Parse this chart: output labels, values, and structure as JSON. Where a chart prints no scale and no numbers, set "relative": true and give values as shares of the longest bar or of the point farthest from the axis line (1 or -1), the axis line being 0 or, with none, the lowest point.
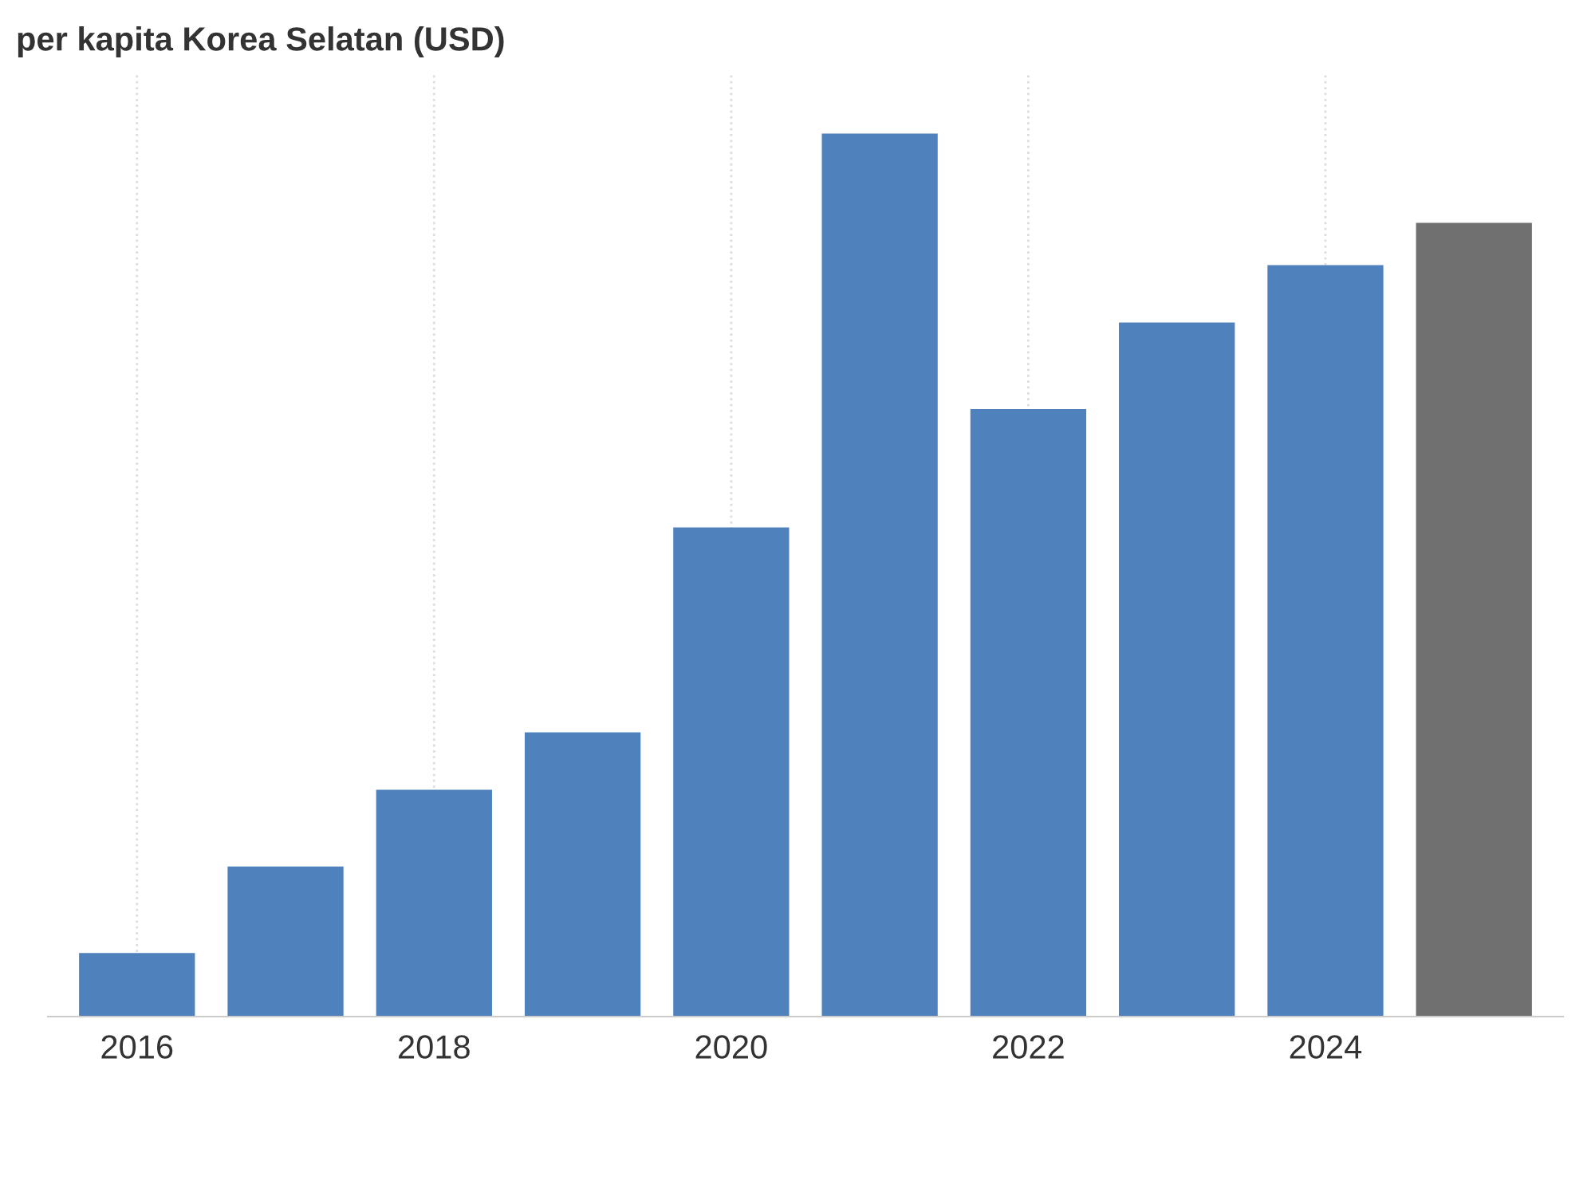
{
  "chart_data": {
    "type": "bar",
    "title": "per kapita Korea Selatan (USD)",
    "categories": [
      "2016",
      null,
      "2018",
      null,
      "2020",
      null,
      "2022",
      null,
      "2024",
      null
    ],
    "values": [
      0.072,
      0.17,
      0.257,
      0.322,
      0.554,
      1,
      0.688,
      0.786,
      0.851,
      0.899
    ],
    "colors": [
      "#4f81bd",
      "#4f81bd",
      "#4f81bd",
      "#4f81bd",
      "#4f81bd",
      "#4f81bd",
      "#4f81bd",
      "#4f81bd",
      "#4f81bd",
      "#707070"
    ],
    "relative": true,
    "grid": "x"
  }
}
